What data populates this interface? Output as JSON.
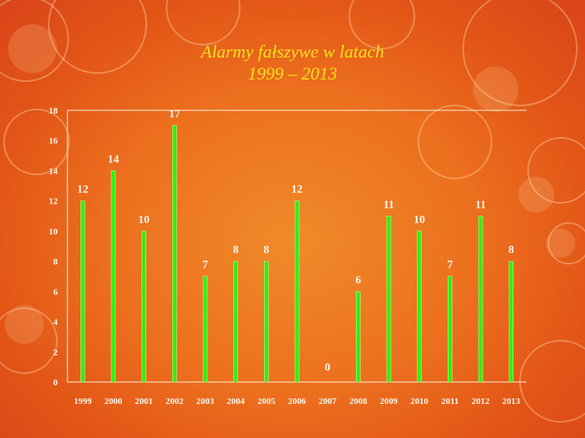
{
  "slide": {
    "title_line1": "Alarmy fałszywe w latach",
    "title_line2": "1999 – 2013"
  },
  "colors": {
    "bar": "#33ee11",
    "axis_text": "#fff7ea",
    "title": "#f7e21a",
    "gridline": "#fff3e0"
  },
  "chart_data": {
    "type": "bar",
    "categories": [
      "1999",
      "2000",
      "2001",
      "2002",
      "2003",
      "2004",
      "2005",
      "2006",
      "2007",
      "2008",
      "2009",
      "2010",
      "2011",
      "2012",
      "2013"
    ],
    "values": [
      12,
      14,
      10,
      17,
      7,
      8,
      8,
      12,
      0,
      6,
      11,
      10,
      7,
      11,
      8
    ],
    "yticks": [
      "0",
      "2",
      "4",
      "6",
      "8",
      "10",
      "12",
      "14",
      "16",
      "18"
    ],
    "ylim": [
      0,
      18
    ],
    "grid": "top line only",
    "legend": "none",
    "data_labels": true
  }
}
